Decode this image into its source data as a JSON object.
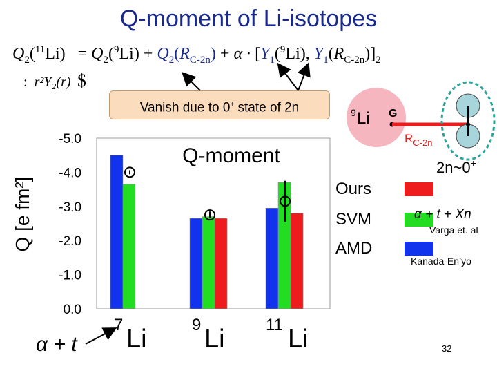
{
  "title": "Q-moment of Li-isotopes",
  "equation": {
    "q2": "Q",
    "q2_sub": "2",
    "li11_mass": "11",
    "li": "Li",
    "equals": "=",
    "li9_mass": "9",
    "r_c2n": "R",
    "r_c2n_sub": "C-2n",
    "plus": "+",
    "alpha_dot": "α ·",
    "y1": "Y",
    "y1_sub": "1",
    "bracket_sub": "2",
    "note_colon": ":",
    "note_r2y2": "r²Y₂(r)",
    "note_symbol": "$"
  },
  "callout": {
    "text": "Vanish due to 0",
    "sup": "+",
    "tail": " state of 2n"
  },
  "diagram": {
    "li9_label": "Li",
    "li9_mass": "9",
    "g_label": "G",
    "rc2n_label": "R",
    "rc2n_sub": "C-2n",
    "two_n_label": "2n~0",
    "two_n_sup": "+"
  },
  "references": {
    "svm_formula": "α + t + Xn",
    "svm_ref": "Varga et. al",
    "amd_ref": "Kanada-En’yo"
  },
  "bottom_left": "α + t",
  "slide_number": "32",
  "colors": {
    "title": "#1a2a8c",
    "ours": "#ee1c1c",
    "svm": "#22dd22",
    "amd": "#1133ee",
    "li9_core": "#f5b6bf",
    "neutron": "#a8d4dc",
    "dashed_circle": "#2aa39a"
  },
  "chart_data": {
    "type": "bar",
    "title": "Q-moment",
    "ylabel": "Q [e fm²]",
    "ylim": [
      0,
      -5
    ],
    "yticks": [
      "-5.0",
      "-4.0",
      "-3.0",
      "-2.0",
      "-1.0",
      "0.0"
    ],
    "categories": [
      "7Li",
      "9Li",
      "11Li"
    ],
    "category_mass": [
      "7",
      "9",
      "11"
    ],
    "category_symbol": [
      "Li",
      "Li",
      "Li"
    ],
    "series": [
      {
        "name": "Ours",
        "color": "#ee1c1c",
        "values": [
          null,
          -2.65,
          -2.8
        ]
      },
      {
        "name": "SVM",
        "color": "#22dd22",
        "values": [
          -3.65,
          -2.7,
          -3.7
        ]
      },
      {
        "name": "AMD",
        "color": "#1133ee",
        "values": [
          -4.5,
          -2.65,
          -2.95
        ]
      }
    ],
    "legend_order": [
      "Ours",
      "SVM",
      "AMD"
    ],
    "experimental": [
      {
        "category": "7Li",
        "value": -4.0,
        "error": 0.06
      },
      {
        "category": "9Li",
        "value": -2.75,
        "error": 0.1
      },
      {
        "category": "11Li",
        "value": -3.15,
        "error": 0.6
      }
    ],
    "legend_position": "right",
    "grid": false
  }
}
